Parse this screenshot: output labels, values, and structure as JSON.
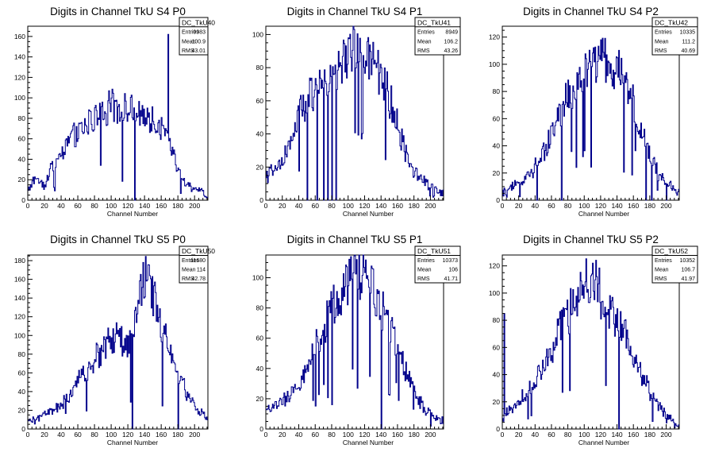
{
  "chart_data": [
    {
      "type": "bar",
      "title": "Digits in Channel TkU S4 P0",
      "xlabel": "Channel Number",
      "ylabel": "",
      "xlim": [
        0,
        216
      ],
      "ylim": [
        0,
        170
      ],
      "xticks": [
        0,
        20,
        40,
        60,
        80,
        100,
        120,
        140,
        160,
        180,
        200
      ],
      "yticks": [
        20,
        40,
        60,
        80,
        100,
        120,
        140,
        160
      ],
      "stats": {
        "name": "DC_TkU40",
        "entries_label": "Entries",
        "entries": "9983",
        "mean_label": "Mean",
        "mean": "100.9",
        "rms_label": "RMS",
        "rms": "43.01"
      },
      "x": [
        0,
        10,
        20,
        30,
        40,
        50,
        60,
        70,
        80,
        90,
        100,
        110,
        120,
        130,
        140,
        150,
        160,
        170,
        180,
        190,
        200,
        210,
        215
      ],
      "values": [
        10,
        22,
        15,
        35,
        45,
        60,
        65,
        75,
        80,
        85,
        92,
        93,
        88,
        85,
        82,
        78,
        70,
        55,
        30,
        15,
        12,
        8,
        5
      ],
      "spikes": [
        [
          128,
          0
        ],
        [
          168,
          162
        ],
        [
          130,
          85
        ]
      ]
    },
    {
      "type": "bar",
      "title": "Digits in Channel TkU S4 P1",
      "xlabel": "Channel Number",
      "ylabel": "",
      "xlim": [
        0,
        216
      ],
      "ylim": [
        0,
        105
      ],
      "xticks": [
        0,
        20,
        40,
        60,
        80,
        100,
        120,
        140,
        160,
        180,
        200
      ],
      "yticks": [
        20,
        40,
        60,
        80,
        100
      ],
      "stats": {
        "name": "DC_TkU41",
        "entries_label": "Entries",
        "entries": "8949",
        "mean_label": "Mean",
        "mean": "106.2",
        "rms_label": "RMS",
        "rms": "43.26"
      },
      "x": [
        0,
        10,
        20,
        30,
        40,
        50,
        60,
        70,
        80,
        90,
        100,
        110,
        120,
        130,
        140,
        150,
        160,
        170,
        180,
        190,
        200,
        210,
        215
      ],
      "values": [
        15,
        18,
        22,
        35,
        50,
        60,
        65,
        70,
        72,
        80,
        88,
        92,
        90,
        85,
        75,
        62,
        45,
        30,
        18,
        12,
        8,
        6,
        5
      ],
      "spikes": [
        [
          50,
          0
        ],
        [
          62,
          0
        ],
        [
          70,
          0
        ],
        [
          75,
          0
        ],
        [
          80,
          0
        ],
        [
          85,
          0
        ],
        [
          100,
          98
        ]
      ]
    },
    {
      "type": "bar",
      "title": "Digits in Channel TkU S4 P2",
      "xlabel": "Channel Number",
      "ylabel": "",
      "xlim": [
        0,
        216
      ],
      "ylim": [
        0,
        128
      ],
      "xticks": [
        0,
        20,
        40,
        60,
        80,
        100,
        120,
        140,
        160,
        180,
        200
      ],
      "yticks": [
        20,
        40,
        60,
        80,
        100,
        120
      ],
      "stats": {
        "name": "DC_TkU42",
        "entries_label": "Entries",
        "entries": "10335",
        "mean_label": "Mean",
        "mean": "111.2",
        "rms_label": "RMS",
        "rms": "40.69"
      },
      "x": [
        0,
        10,
        20,
        30,
        40,
        50,
        60,
        70,
        80,
        90,
        100,
        110,
        120,
        130,
        140,
        150,
        160,
        170,
        180,
        190,
        200,
        210,
        215
      ],
      "values": [
        5,
        8,
        12,
        18,
        25,
        35,
        50,
        65,
        75,
        82,
        92,
        100,
        105,
        100,
        95,
        85,
        70,
        50,
        35,
        20,
        12,
        8,
        5
      ],
      "spikes": [
        [
          42,
          0
        ],
        [
          72,
          0
        ],
        [
          120,
          118
        ],
        [
          175,
          0
        ],
        [
          182,
          0
        ],
        [
          200,
          0
        ]
      ]
    },
    {
      "type": "bar",
      "title": "Digits in Channel TkU S5 P0",
      "xlabel": "Channel Number",
      "ylabel": "",
      "xlim": [
        0,
        216
      ],
      "ylim": [
        0,
        186
      ],
      "xticks": [
        0,
        20,
        40,
        60,
        80,
        100,
        120,
        140,
        160,
        180,
        200
      ],
      "yticks": [
        20,
        40,
        60,
        80,
        100,
        120,
        140,
        160,
        180
      ],
      "stats": {
        "name": "DC_TkU50",
        "entries_label": "Entries",
        "entries": "11680",
        "mean_label": "Mean",
        "mean": "114",
        "rms_label": "RMS",
        "rms": "42.78"
      },
      "x": [
        0,
        10,
        20,
        30,
        40,
        50,
        60,
        70,
        80,
        90,
        100,
        110,
        120,
        130,
        140,
        150,
        160,
        170,
        180,
        190,
        200,
        210,
        215
      ],
      "values": [
        8,
        10,
        15,
        20,
        25,
        35,
        50,
        60,
        75,
        85,
        95,
        100,
        90,
        120,
        165,
        140,
        110,
        85,
        60,
        40,
        25,
        15,
        10
      ],
      "spikes": [
        [
          125,
          0
        ],
        [
          138,
          178
        ],
        [
          180,
          0
        ]
      ]
    },
    {
      "type": "bar",
      "title": "Digits in Channel TkU S5 P1",
      "xlabel": "Channel Number",
      "ylabel": "",
      "xlim": [
        0,
        216
      ],
      "ylim": [
        0,
        115
      ],
      "xticks": [
        0,
        20,
        40,
        60,
        80,
        100,
        120,
        140,
        160,
        180,
        200
      ],
      "yticks": [
        20,
        40,
        60,
        80,
        100
      ],
      "stats": {
        "name": "DC_TkU51",
        "entries_label": "Entries",
        "entries": "10373",
        "mean_label": "Mean",
        "mean": "106",
        "rms_label": "RMS",
        "rms": "41.71"
      },
      "x": [
        0,
        10,
        20,
        30,
        40,
        50,
        60,
        70,
        80,
        90,
        100,
        110,
        120,
        130,
        140,
        150,
        160,
        170,
        180,
        190,
        200,
        210,
        215
      ],
      "values": [
        12,
        15,
        18,
        22,
        30,
        40,
        55,
        68,
        80,
        92,
        100,
        105,
        100,
        95,
        82,
        68,
        55,
        40,
        25,
        15,
        10,
        8,
        6
      ],
      "spikes": [
        [
          110,
          112
        ],
        [
          140,
          0
        ]
      ]
    },
    {
      "type": "bar",
      "title": "Digits in Channel TkU S5 P2",
      "xlabel": "Channel Number",
      "ylabel": "",
      "xlim": [
        0,
        216
      ],
      "ylim": [
        0,
        128
      ],
      "xticks": [
        0,
        20,
        40,
        60,
        80,
        100,
        120,
        140,
        160,
        180,
        200
      ],
      "yticks": [
        20,
        40,
        60,
        80,
        100,
        120
      ],
      "stats": {
        "name": "DC_TkU52",
        "entries_label": "Entries",
        "entries": "10352",
        "mean_label": "Mean",
        "mean": "106.7",
        "rms_label": "RMS",
        "rms": "41.97"
      },
      "x": [
        0,
        10,
        20,
        30,
        40,
        50,
        60,
        70,
        80,
        90,
        100,
        110,
        120,
        130,
        140,
        150,
        160,
        170,
        180,
        190,
        200,
        210,
        215
      ],
      "values": [
        8,
        15,
        20,
        25,
        35,
        48,
        60,
        75,
        85,
        95,
        105,
        108,
        100,
        90,
        80,
        70,
        55,
        40,
        28,
        18,
        10,
        6,
        4
      ],
      "spikes": [
        [
          2,
          85
        ],
        [
          110,
          122
        ],
        [
          142,
          0
        ]
      ]
    }
  ]
}
